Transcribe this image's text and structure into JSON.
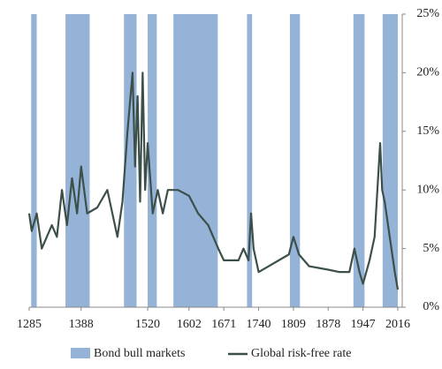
{
  "chart_data": {
    "type": "line",
    "bands": {
      "name": "Bond bull markets",
      "color": "#95b3d7",
      "ranges": [
        [
          1289,
          1300
        ],
        [
          1357,
          1405
        ],
        [
          1473,
          1498
        ],
        [
          1520,
          1538
        ],
        [
          1571,
          1659
        ],
        [
          1717,
          1727
        ],
        [
          1802,
          1822
        ],
        [
          1928,
          1950
        ],
        [
          1986,
          2016
        ]
      ]
    },
    "series": [
      {
        "name": "Global risk-free rate",
        "color": "#3d4f49",
        "x": [
          1285,
          1290,
          1300,
          1310,
          1330,
          1340,
          1350,
          1360,
          1370,
          1380,
          1388,
          1400,
          1420,
          1440,
          1460,
          1470,
          1480,
          1490,
          1495,
          1500,
          1505,
          1510,
          1515,
          1520,
          1530,
          1540,
          1550,
          1560,
          1580,
          1602,
          1620,
          1640,
          1650,
          1660,
          1671,
          1700,
          1710,
          1720,
          1725,
          1730,
          1740,
          1760,
          1780,
          1800,
          1809,
          1820,
          1840,
          1878,
          1900,
          1920,
          1930,
          1940,
          1947,
          1960,
          1970,
          1981,
          1985,
          1990,
          2000,
          2010,
          2016
        ],
        "values": [
          8,
          6.5,
          8,
          5,
          7,
          6,
          10,
          7,
          11,
          8,
          12,
          8,
          8.5,
          10,
          6,
          9,
          15,
          20,
          12,
          18,
          9,
          20,
          10,
          14,
          8,
          10,
          8,
          10,
          10,
          9.5,
          8,
          7,
          6,
          5,
          4,
          4,
          5,
          4,
          8,
          5,
          3,
          3.5,
          4,
          4.5,
          6,
          4.5,
          3.5,
          3.2,
          3,
          3,
          5,
          3,
          2,
          4,
          6,
          14,
          10,
          9,
          6,
          3,
          1.5
        ]
      }
    ],
    "xlim": [
      1285,
      2016
    ],
    "xticks": [
      1285,
      1388,
      1520,
      1602,
      1671,
      1740,
      1809,
      1878,
      1947,
      2016
    ],
    "ylim": [
      0,
      25
    ],
    "yticks": [
      {
        "value": 0,
        "label": "0%"
      },
      {
        "value": 5,
        "label": "5%"
      },
      {
        "value": 10,
        "label": "10%"
      },
      {
        "value": 15,
        "label": "15%"
      },
      {
        "value": 20,
        "label": "20%"
      },
      {
        "value": 25,
        "label": "25%"
      }
    ],
    "y_axis_side": "right"
  }
}
